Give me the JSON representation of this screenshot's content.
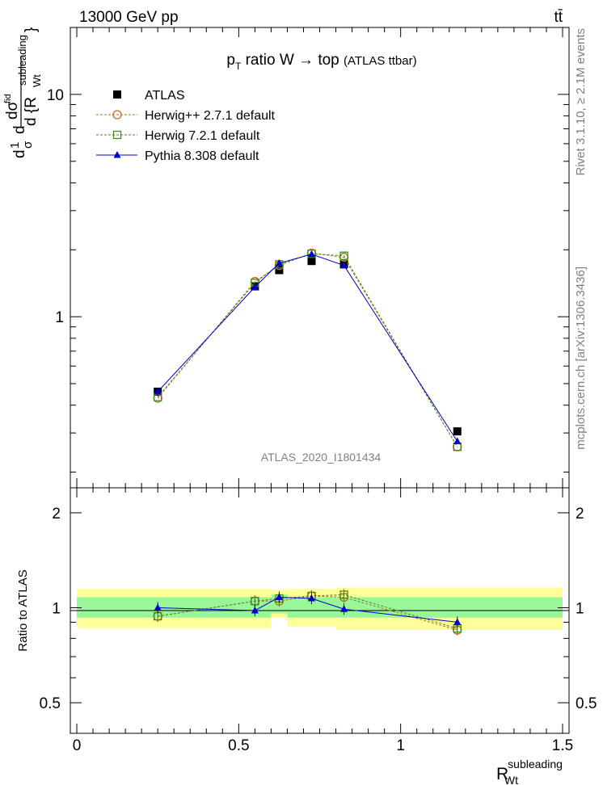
{
  "header": {
    "energy_label": "13000 GeV pp",
    "process_label": "tt̄"
  },
  "side_labels": {
    "rivet": "Rivet 3.1.10, ≥ 2.1M events",
    "mcplots": "mcplots.cern.ch [arXiv:1306.3436]"
  },
  "chart_data": [
    {
      "type": "line",
      "title_main": "p",
      "title_sub": "T",
      "title_rest": " ratio W → top ",
      "title_small": "(ATLAS ttbar)",
      "watermark": "ATLAS_2020_I1801434",
      "ylabel_parts": [
        "d",
        "1",
        "σ",
        "d",
        "dσ",
        "fid",
        "d {R",
        "subleading",
        "Wt",
        "}"
      ],
      "yscale": "log",
      "ylim": [
        0.17,
        20
      ],
      "yticks": [
        "1",
        "10"
      ],
      "xlim": [
        -0.02,
        1.52
      ],
      "grid": false,
      "legend_position": "top-left",
      "series": [
        {
          "name": "ATLAS",
          "color": "#000000",
          "marker": "filled-square",
          "x": [
            0.25,
            0.55,
            0.625,
            0.725,
            0.825,
            1.175
          ],
          "y": [
            0.46,
            1.37,
            1.62,
            1.78,
            1.72,
            0.305
          ]
        },
        {
          "name": "Herwig++ 2.7.1 default",
          "color": "#c06a1e",
          "marker": "open-circle",
          "dashed": true,
          "x": [
            0.25,
            0.55,
            0.625,
            0.725,
            0.825,
            1.175
          ],
          "y": [
            0.43,
            1.44,
            1.7,
            1.93,
            1.85,
            0.26
          ]
        },
        {
          "name": "Herwig 7.2.1 default",
          "color": "#3c8e1e",
          "marker": "open-square",
          "dashed": true,
          "x": [
            0.25,
            0.55,
            0.625,
            0.725,
            0.825,
            1.175
          ],
          "y": [
            0.435,
            1.42,
            1.72,
            1.92,
            1.88,
            0.26
          ]
        },
        {
          "name": "Pythia 8.308 default",
          "color": "#0000cc",
          "marker": "filled-triangle",
          "x": [
            0.25,
            0.55,
            0.625,
            0.725,
            0.825,
            1.175
          ],
          "y": [
            0.46,
            1.36,
            1.74,
            1.91,
            1.7,
            0.275
          ]
        }
      ]
    },
    {
      "type": "line",
      "ylabel": "Ratio to ATLAS",
      "yscale": "log",
      "ylim": [
        0.4,
        2.4
      ],
      "yticks": [
        "0.5",
        "1",
        "2"
      ],
      "xlim": [
        -0.02,
        1.52
      ],
      "xticks": [
        "0",
        "0.5",
        "1",
        "1.5"
      ],
      "xlabel_main": "R",
      "xlabel_sup": "subleading",
      "xlabel_sub": "Wt",
      "bands": [
        {
          "x": [
            0.0,
            0.6
          ],
          "inner": [
            0.93,
            1.08
          ],
          "outer": [
            0.86,
            1.15
          ]
        },
        {
          "x": [
            0.6,
            0.65
          ],
          "inner": [
            0.96,
            1.1
          ],
          "outer": [
            0.93,
            1.14
          ]
        },
        {
          "x": [
            0.65,
            0.8
          ],
          "inner": [
            0.93,
            1.08
          ],
          "outer": [
            0.87,
            1.15
          ]
        },
        {
          "x": [
            0.8,
            1.5
          ],
          "inner": [
            0.93,
            1.08
          ],
          "outer": [
            0.85,
            1.16
          ]
        }
      ],
      "band_colors": {
        "inner": "#99f799",
        "outer": "#ffff99"
      },
      "series": [
        {
          "name": "Herwig++ 2.7.1 default",
          "color": "#c06a1e",
          "marker": "open-circle",
          "dashed": true,
          "x": [
            0.25,
            0.55,
            0.625,
            0.725,
            0.825,
            1.175
          ],
          "y": [
            0.94,
            1.05,
            1.05,
            1.09,
            1.08,
            0.85
          ]
        },
        {
          "name": "Herwig 7.2.1 default",
          "color": "#3c8e1e",
          "marker": "open-square",
          "dashed": true,
          "x": [
            0.25,
            0.55,
            0.625,
            0.725,
            0.825,
            1.175
          ],
          "y": [
            0.94,
            1.05,
            1.07,
            1.09,
            1.1,
            0.86
          ]
        },
        {
          "name": "Pythia 8.308 default",
          "color": "#0000cc",
          "marker": "filled-triangle",
          "x": [
            0.25,
            0.55,
            0.625,
            0.725,
            0.825,
            1.175
          ],
          "y": [
            1.0,
            0.98,
            1.08,
            1.07,
            0.99,
            0.9
          ]
        }
      ]
    }
  ]
}
